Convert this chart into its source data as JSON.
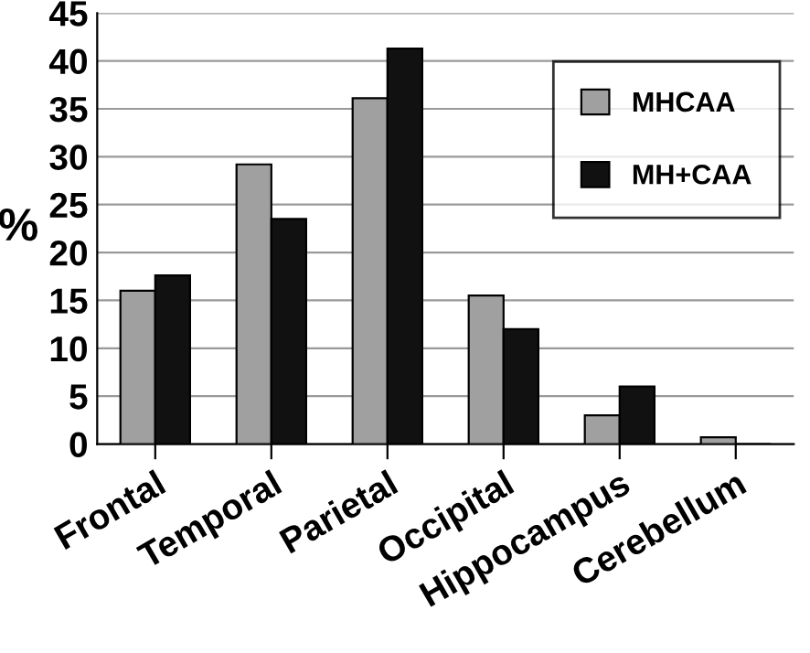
{
  "chart_data": {
    "type": "bar",
    "ylabel": "%",
    "categories": [
      "Frontal",
      "Temporal",
      "Parietal",
      "Occipital",
      "Hippocampus",
      "Cerebellum"
    ],
    "series": [
      {
        "name": "MHCAA",
        "color": "#a0a0a0",
        "values": [
          16,
          29.2,
          36.1,
          15.5,
          3,
          0.7
        ]
      },
      {
        "name": "MH+CAA",
        "color": "#111111",
        "values": [
          17.6,
          23.5,
          41.3,
          12,
          6,
          0
        ]
      }
    ],
    "ylim": [
      0,
      45
    ],
    "yticks": [
      0,
      5,
      10,
      15,
      20,
      25,
      30,
      35,
      40,
      45
    ],
    "grid": "y",
    "legend": "top right"
  }
}
